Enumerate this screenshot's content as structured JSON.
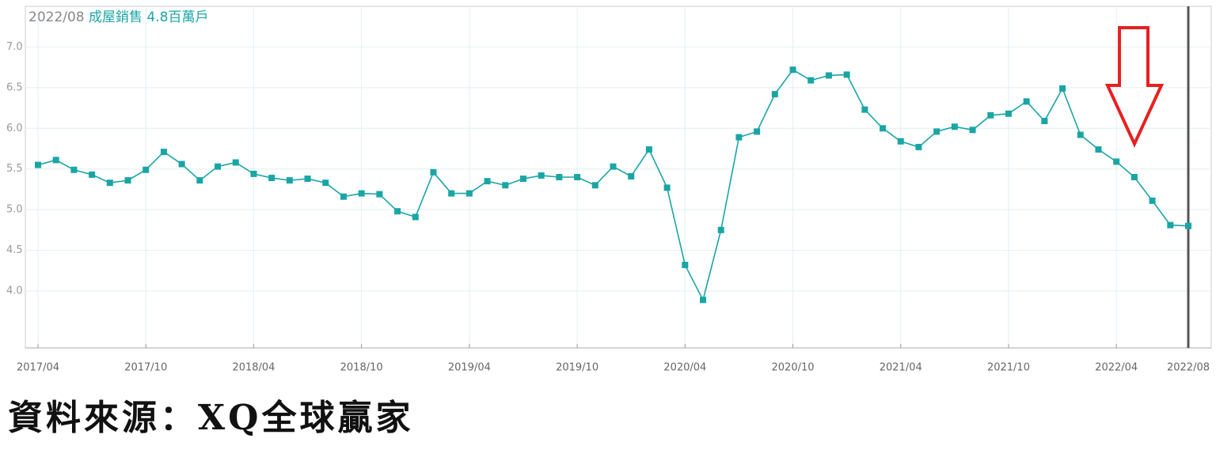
{
  "chart_data": {
    "type": "line",
    "annotations": [
      "2022/08",
      "成屋銷售 4.8百萬戶"
    ],
    "categories": [
      "2017/04",
      null,
      null,
      null,
      null,
      null,
      "2017/10",
      null,
      null,
      null,
      null,
      null,
      "2018/04",
      null,
      null,
      null,
      null,
      null,
      "2018/10",
      null,
      null,
      null,
      null,
      null,
      "2019/04",
      null,
      null,
      null,
      null,
      null,
      "2019/10",
      null,
      null,
      null,
      null,
      null,
      "2020/04",
      null,
      null,
      null,
      null,
      null,
      "2020/10",
      null,
      null,
      null,
      null,
      null,
      "2021/04",
      null,
      null,
      null,
      null,
      null,
      "2021/10",
      null,
      null,
      null,
      null,
      null,
      "2022/04",
      null,
      null,
      null,
      "2022/08"
    ],
    "series": [
      {
        "name": "成屋銷售",
        "color": "#1aa5a5",
        "values": [
          5.55,
          5.61,
          5.49,
          5.43,
          5.33,
          5.36,
          5.49,
          5.71,
          5.56,
          5.36,
          5.53,
          5.58,
          5.44,
          5.39,
          5.36,
          5.38,
          5.33,
          5.16,
          5.2,
          5.19,
          4.98,
          4.91,
          5.46,
          5.2,
          5.2,
          5.35,
          5.3,
          5.38,
          5.42,
          5.4,
          5.4,
          5.3,
          5.53,
          5.41,
          5.74,
          5.27,
          4.32,
          3.89,
          4.75,
          5.89,
          5.96,
          6.42,
          6.72,
          6.59,
          6.65,
          6.66,
          6.23,
          6.0,
          5.84,
          5.77,
          5.96,
          6.02,
          5.98,
          6.16,
          6.18,
          6.33,
          6.09,
          6.49,
          5.92,
          5.74,
          5.59,
          5.4,
          5.11,
          4.81,
          4.8
        ]
      }
    ],
    "ylim": [
      3.3,
      7.5
    ],
    "yticks": [
      {
        "value": 4,
        "label": "4.0"
      },
      {
        "value": 4.5,
        "label": "4.5"
      },
      {
        "value": 5,
        "label": "5.0"
      },
      {
        "value": 5.5,
        "label": "5.5"
      },
      {
        "value": 6,
        "label": "6.0"
      },
      {
        "value": 6.5,
        "label": "6.5"
      },
      {
        "value": 7,
        "label": "7.0"
      }
    ],
    "grid": true
  },
  "source": "資料來源：XQ全球贏家"
}
